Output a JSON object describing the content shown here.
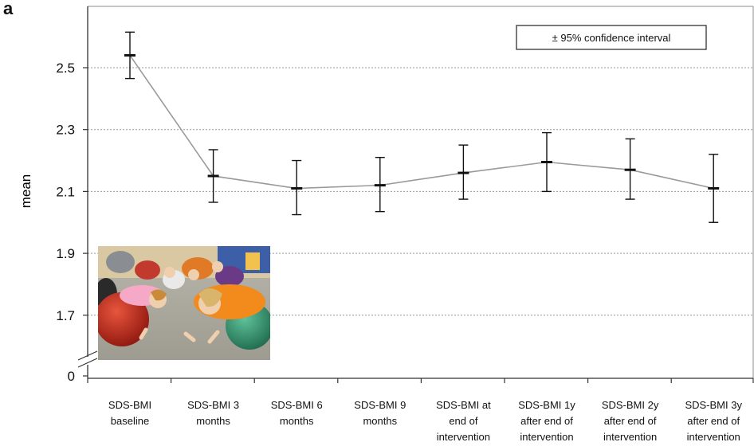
{
  "panel_label": "a",
  "chart_data": {
    "type": "line",
    "title": "",
    "xlabel": "",
    "ylabel": "mean",
    "categories": [
      [
        "SDS-BMI",
        "baseline"
      ],
      [
        "SDS-BMI 3",
        "months"
      ],
      [
        "SDS-BMI 6",
        "months"
      ],
      [
        "SDS-BMI 9",
        "months"
      ],
      [
        "SDS-BMI at",
        "end of",
        "intervention"
      ],
      [
        "SDS-BMI 1y",
        "after end of",
        "intervention"
      ],
      [
        "SDS-BMI 2y",
        "after end of",
        "intervention"
      ],
      [
        "SDS-BMI 3y",
        "after end of",
        "intervention"
      ]
    ],
    "series": [
      {
        "values": [
          2.54,
          2.15,
          2.11,
          2.12,
          2.16,
          2.195,
          2.17,
          2.11
        ],
        "ci_low": [
          2.465,
          2.065,
          2.025,
          2.035,
          2.075,
          2.1,
          2.075,
          2.0
        ],
        "ci_high": [
          2.615,
          2.235,
          2.2,
          2.21,
          2.25,
          2.29,
          2.27,
          2.22
        ]
      }
    ],
    "yticks": [
      "2.5",
      "2.3",
      "2.1",
      "1.9",
      "1.7",
      "0"
    ],
    "ylim": [
      1.6,
      2.65
    ],
    "axis_break": true,
    "grid": "horizontal dotted",
    "legend": {
      "text": "± 95% confidence interval",
      "position": "top-right"
    }
  }
}
